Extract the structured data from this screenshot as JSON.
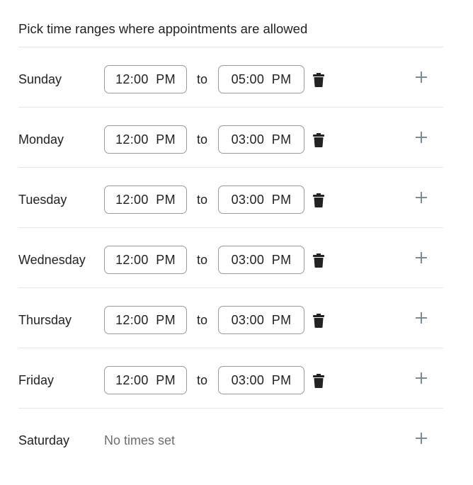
{
  "header": {
    "title": "Pick time ranges where appointments are allowed"
  },
  "separator_label": "to",
  "empty_label": "No times set",
  "colors": {
    "plus": "#7a8c96",
    "trash": "#222222",
    "border": "#9a9a9a"
  },
  "days": [
    {
      "name": "Sunday",
      "start": "12:00  PM",
      "end": "05:00  PM"
    },
    {
      "name": "Monday",
      "start": "12:00  PM",
      "end": "03:00  PM"
    },
    {
      "name": "Tuesday",
      "start": "12:00  PM",
      "end": "03:00  PM"
    },
    {
      "name": "Wednesday",
      "start": "12:00  PM",
      "end": "03:00  PM"
    },
    {
      "name": "Thursday",
      "start": "12:00  PM",
      "end": "03:00  PM"
    },
    {
      "name": "Friday",
      "start": "12:00  PM",
      "end": "03:00  PM"
    },
    {
      "name": "Saturday",
      "start": null,
      "end": null
    }
  ]
}
